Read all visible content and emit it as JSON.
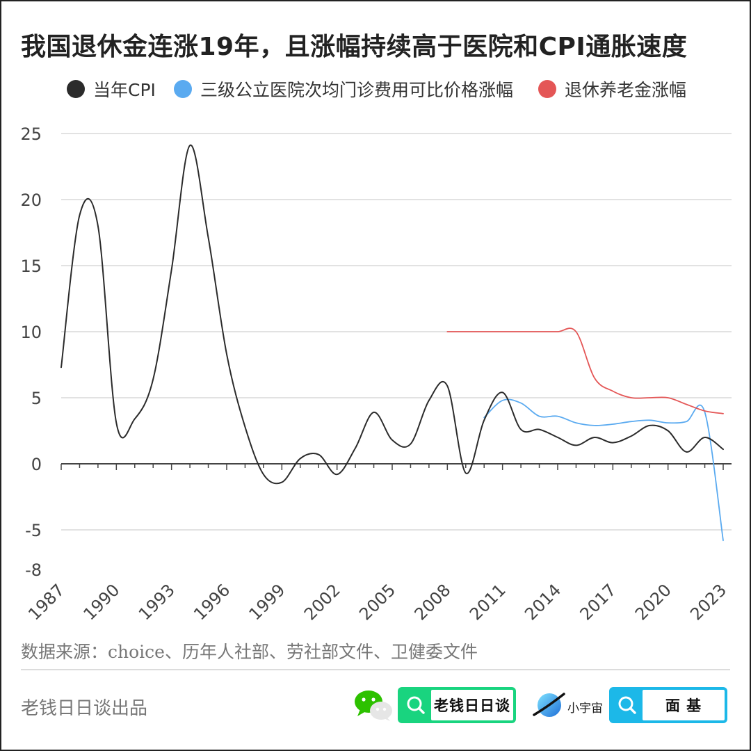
{
  "title": "我国退休金连涨19年，且涨幅持续高于医院和CPI通胀速度",
  "legend": [
    {
      "label": "当年CPI",
      "color": "#2b2b2b"
    },
    {
      "label": "三级公立医院次均门诊费用可比价格涨幅",
      "color": "#5aaaf0"
    },
    {
      "label": "退休养老金涨幅",
      "color": "#e45656"
    }
  ],
  "chart_data": {
    "type": "line",
    "xlabel": "",
    "ylabel": "",
    "x_ticks": [
      "1987",
      "1990",
      "1993",
      "1996",
      "1999",
      "2002",
      "2005",
      "2008",
      "2011",
      "2014",
      "2017",
      "2020",
      "2023"
    ],
    "y_ticks": [
      25,
      20,
      15,
      10,
      5,
      0,
      -5,
      -8
    ],
    "ylim": [
      -8,
      25
    ],
    "xlim": [
      1987,
      2023
    ],
    "grid": true,
    "legend_position": "top",
    "series": [
      {
        "name": "当年CPI",
        "color": "#2b2b2b",
        "x": [
          1987,
          1988,
          1989,
          1990,
          1991,
          1992,
          1993,
          1994,
          1995,
          1996,
          1997,
          1998,
          1999,
          2000,
          2001,
          2002,
          2003,
          2004,
          2005,
          2006,
          2007,
          2008,
          2009,
          2010,
          2011,
          2012,
          2013,
          2014,
          2015,
          2016,
          2017,
          2018,
          2019,
          2020,
          2021,
          2022,
          2023
        ],
        "y": [
          7.3,
          18.8,
          18.0,
          3.1,
          3.4,
          6.4,
          14.7,
          24.1,
          17.1,
          8.3,
          2.8,
          -0.8,
          -1.4,
          0.4,
          0.7,
          -0.8,
          1.2,
          3.9,
          1.8,
          1.5,
          4.8,
          5.9,
          -0.7,
          3.3,
          5.4,
          2.6,
          2.6,
          2.0,
          1.4,
          2.0,
          1.6,
          2.1,
          2.9,
          2.5,
          0.9,
          2.0,
          1.1
        ]
      },
      {
        "name": "三级公立医院次均门诊费用可比价格涨幅",
        "color": "#5aaaf0",
        "x": [
          2010,
          2011,
          2012,
          2013,
          2014,
          2015,
          2016,
          2017,
          2018,
          2019,
          2020,
          2021,
          2022,
          2023
        ],
        "y": [
          3.5,
          4.8,
          4.6,
          3.6,
          3.6,
          3.1,
          2.9,
          3.0,
          3.2,
          3.3,
          3.1,
          3.2,
          3.9,
          -5.8
        ]
      },
      {
        "name": "退休养老金涨幅",
        "color": "#e45656",
        "x": [
          2008,
          2009,
          2010,
          2011,
          2012,
          2013,
          2014,
          2015,
          2016,
          2017,
          2018,
          2019,
          2020,
          2021,
          2022,
          2023
        ],
        "y": [
          10,
          10,
          10,
          10,
          10,
          10,
          10,
          10,
          6.5,
          5.5,
          5,
          5,
          5,
          4.5,
          4,
          3.8
        ]
      }
    ]
  },
  "source": "数据来源：choice、历年人社部、劳社部文件、卫健委文件",
  "producer": "老钱日日谈出品",
  "badges": {
    "wechat_icon": "wechat-icon",
    "search1": "老钱日日谈",
    "planet_label": "小宇宙",
    "search2": "面 基"
  },
  "colors": {
    "grid": "#d9d9d9",
    "axis": "#444444",
    "green": "#19d47f",
    "blue": "#1cb8e8"
  }
}
